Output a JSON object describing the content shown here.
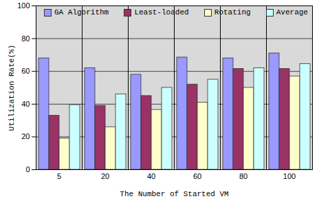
{
  "chart_data": {
    "type": "bar",
    "x_label": "The Number of Started VM",
    "y_label": "Utilization Rate(%)",
    "categories": [
      "5",
      "20",
      "40",
      "60",
      "80",
      "100"
    ],
    "series": [
      {
        "name": "GA Algorithm",
        "color": "#9999ff",
        "values": [
          68,
          62,
          58,
          68.5,
          68,
          71
        ]
      },
      {
        "name": "Least-loaded",
        "color": "#993366",
        "values": [
          33,
          39,
          45,
          52,
          61.5,
          61.5
        ]
      },
      {
        "name": "Rotating",
        "color": "#ffffcc",
        "values": [
          19,
          26,
          36.5,
          41,
          50,
          57
        ]
      },
      {
        "name": "Average",
        "color": "#ccffff",
        "values": [
          39.5,
          46,
          50,
          55,
          62,
          64.5
        ]
      }
    ],
    "ylim": [
      0,
      100
    ],
    "yticks": [
      0,
      20,
      40,
      60,
      80,
      100
    ],
    "grid": true,
    "legend": "top"
  }
}
